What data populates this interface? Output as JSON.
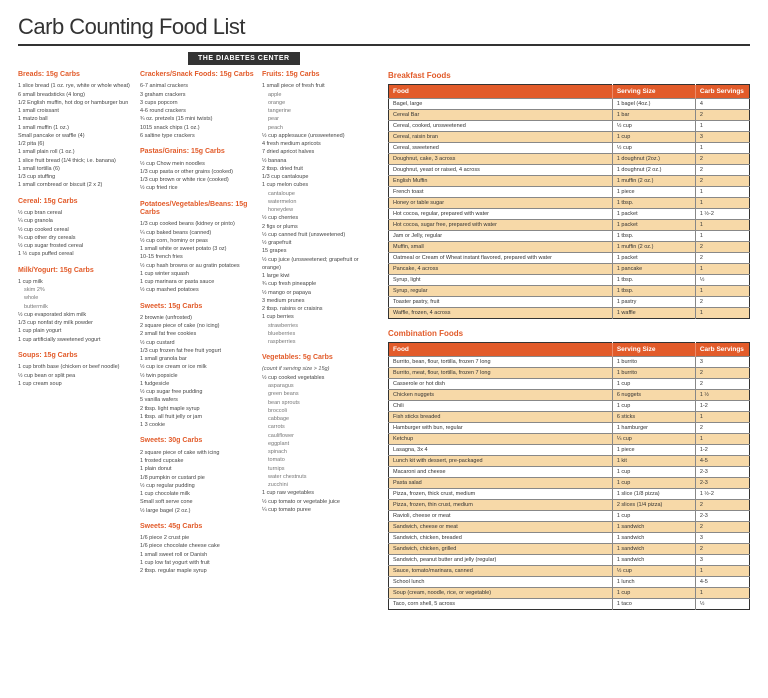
{
  "title": "Carb Counting Food List",
  "banner": "THE DIABETES CENTER",
  "colors": {
    "accent": "#e25b2a",
    "highlight": "#f7d9a8"
  },
  "columns": [
    [
      {
        "head": "Breads: 15g Carbs",
        "items": [
          "1 slice bread (1 oz. rye, white or whole wheat)",
          "6 small breadsticks (4 long)",
          "1/2 English muffin, hot dog or hamburger bun",
          "1 small croissant",
          "1 matzo ball",
          "1 small muffin (1 oz.)",
          "Small pancake or waffle (4)",
          "1/2 pita (6)",
          "1 small plain roll (1 oz.)",
          "1 slice fruit bread (1/4 thick; i.e. banana)",
          "1 small tortilla (6)",
          "1/3 cup stuffing",
          "1 small cornbread or biscuit (2 x 2)"
        ]
      },
      {
        "head": "Cereal: 15g Carbs",
        "items": [
          "½ cup bran cereal",
          "¼ cup granola",
          "½ cup cooked cereal",
          "¾ cup other dry cereals",
          "½ cup sugar frosted cereal",
          "1 ½ cups puffed cereal"
        ]
      },
      {
        "head": "Milk/Yogurt: 15g Carbs",
        "items": [
          "1 cup milk"
        ],
        "subs": [
          "skim 2%",
          "whole",
          "buttermilk"
        ],
        "more": [
          "½ cup evaporated skim milk",
          "1/3 cup nonfat dry milk powder",
          "1 cup plain yogurt",
          "1 cup artificially sweetened yogurt"
        ]
      },
      {
        "head": "Soups: 15g Carbs",
        "items": [
          "1 cup broth base (chicken or beef noodle)",
          "½ cup bean or split pea",
          "1 cup cream soup"
        ]
      }
    ],
    [
      {
        "head": "Crackers/Snack Foods: 15g Carbs",
        "items": [
          "6-7 animal crackers",
          "3 graham crackers",
          "3 cups popcorn",
          "4-6 round crackers",
          "¾ oz. pretzels (15 mini twists)",
          "1015 snack chips (1 oz.)",
          "6 saltine type crackers"
        ]
      },
      {
        "head": "Pastas/Grains: 15g Carbs",
        "items": [
          "½ cup Chow mein noodles",
          "1/3 cup pasta or other grains (cooked)",
          "1/3 cup brown or white rice (cooked)",
          "½ cup fried rice"
        ]
      },
      {
        "head": "Potatoes/Vegetables/Beans: 15g Carbs",
        "items": [
          "1/3 cup cooked beans (kidney or pinto)",
          "¼ cup baked beans (canned)",
          "½ cup corn, hominy or peas",
          "1 small white or sweet potato (3 oz)",
          "10-15 french fries",
          "½ cup hash browns or au gratin potatoes",
          "1 cup winter squash",
          "1 cup marinara or pasta sauce",
          "½ cup mashed potatoes"
        ]
      },
      {
        "head": "Sweets: 15g Carbs",
        "items": [
          "2 brownie (unfrosted)",
          "2 square piece of cake (no icing)",
          "2 small fat free cookies",
          "½ cup custard",
          "1/3 cup frozen fat free fruit yogurt",
          "1 small granola bar",
          "½ cup ice cream or ice milk",
          "½ twin popsicle",
          "1 fudgesicle",
          "½ cup sugar free pudding",
          "5 vanilla wafers",
          "2 tbsp. light maple syrup",
          "1 tbsp. all fruit jelly or jam",
          "1 3 cookie"
        ]
      },
      {
        "head": "Sweets: 30g Carbs",
        "items": [
          "2 square piece of cake with icing",
          "1 frosted cupcake",
          "1 plain donut",
          "1/8 pumpkin or custard pie",
          "½ cup regular pudding",
          "1 cup chocolate milk",
          "Small soft serve cone",
          "½ large bagel (2 oz.)"
        ]
      },
      {
        "head": "Sweets: 45g Carbs",
        "items": [
          "1/6 piece 2 crust pie",
          "1/6 piece chocolate cheese cake",
          "1 small sweet roll or Danish",
          "1 cup low fat yogurt with fruit",
          "2 tbsp. regular maple syrup"
        ]
      }
    ],
    [
      {
        "head": "Fruits: 15g Carbs",
        "items": [
          "1 small piece of fresh fruit"
        ],
        "subs": [
          "apple",
          "orange",
          "tangerine",
          "pear",
          "peach"
        ],
        "more": [
          "½ cup applesauce (unsweetened)",
          "4 fresh medium apricots",
          "7 dried apricot halves",
          "½ banana",
          "2 tbsp. dried fruit",
          "1/3 cup cantaloupe",
          "1 cup melon cubes"
        ],
        "subs2": [
          "cantaloupe",
          "watermelon",
          "honeydew"
        ],
        "more2": [
          "½ cup cherries",
          "2 figs or plums",
          "½ cup canned fruit (unsweetened)",
          "½ grapefruit",
          "15 grapes",
          "½ cup juice (unsweetened; grapefruit or orange)",
          "1 large kiwi",
          "¾ cup fresh pineapple",
          "½ mango or papaya",
          "3 medium prunes",
          "2 tbsp. raisins or craisins",
          "1 cup berries"
        ],
        "subs3": [
          "strawberries",
          "blueberries",
          "raspberries"
        ]
      },
      {
        "head": "Vegetables: 5g Carbs",
        "note": "(count if serving size > 15g)",
        "items": [
          "½ cup cooked vegetables"
        ],
        "subs": [
          "asparagus",
          "green beans",
          "bean sprouts",
          "broccoli",
          "cabbage",
          "carrots",
          "cauliflower",
          "eggplant",
          "spinach",
          "tomato",
          "turnips",
          "water chestnuts",
          "zucchini"
        ],
        "more": [
          "1 cup raw vegetables",
          "½ cup tomato or vegetable juice",
          "¼ cup tomato puree"
        ]
      }
    ]
  ],
  "tables": [
    {
      "title": "Breakfast Foods",
      "headers": [
        "Food",
        "Serving Size",
        "Carb Servings"
      ],
      "rows": [
        {
          "c": [
            "Bagel, large",
            "1 bagel (4oz.)",
            "4"
          ]
        },
        {
          "c": [
            "Cereal Bar",
            "1 bar",
            "2"
          ],
          "hi": true
        },
        {
          "c": [
            "Cereal, cooked, unsweetened",
            "½ cup",
            "1"
          ]
        },
        {
          "c": [
            "Cereal, raisin bran",
            "1 cup",
            "3"
          ],
          "hi": true
        },
        {
          "c": [
            "Cereal, sweetened",
            "½ cup",
            "1"
          ]
        },
        {
          "c": [
            "Doughnut, cake, 3 across",
            "1 doughnut (2oz.)",
            "2"
          ],
          "hi": true
        },
        {
          "c": [
            "Doughnut, yeast or raised, 4 across",
            "1 doughnut (2 oz.)",
            "2"
          ]
        },
        {
          "c": [
            "English Muffin",
            "1 muffin (2 oz.)",
            "2"
          ],
          "hi": true
        },
        {
          "c": [
            "French toast",
            "1 piece",
            "1"
          ]
        },
        {
          "c": [
            "Honey or table sugar",
            "1 tbsp.",
            "1"
          ],
          "hi": true
        },
        {
          "c": [
            "Hot cocoa, regular, prepared with water",
            "1 packet",
            "1 ½-2"
          ]
        },
        {
          "c": [
            "Hot cocoa, sugar free, prepared with water",
            "1 packet",
            "1"
          ],
          "hi": true
        },
        {
          "c": [
            "Jam or Jelly, regular",
            "1 tbsp.",
            "1"
          ]
        },
        {
          "c": [
            "Muffin, small",
            "1 muffin (2 oz.)",
            "2"
          ],
          "hi": true
        },
        {
          "c": [
            "Oatmeal or Cream of Wheat instant flavored, prepared with water",
            "1 packet",
            "2"
          ]
        },
        {
          "c": [
            "Pancake, 4 across",
            "1 pancake",
            "1"
          ],
          "hi": true
        },
        {
          "c": [
            "Syrup, light",
            "1 tbsp.",
            "½"
          ]
        },
        {
          "c": [
            "Syrup, regular",
            "1 tbsp.",
            "1"
          ],
          "hi": true
        },
        {
          "c": [
            "Toaster pastry, fruit",
            "1 pastry",
            "2"
          ]
        },
        {
          "c": [
            "Waffle, frozen, 4 across",
            "1 waffle",
            "1"
          ],
          "hi": true
        }
      ]
    },
    {
      "title": "Combination Foods",
      "headers": [
        "Food",
        "Serving Size",
        "Carb Servings"
      ],
      "rows": [
        {
          "c": [
            "Burrito, bean, flour, tortilla, frozen 7 long",
            "1 burrito",
            "3"
          ]
        },
        {
          "c": [
            "Burrito, meat, flour, tortilla, frozen 7 long",
            "1 burrito",
            "2"
          ],
          "hi": true
        },
        {
          "c": [
            "Casserole or hot dish",
            "1 cup",
            "2"
          ]
        },
        {
          "c": [
            "Chicken nuggets",
            "6 nuggets",
            "1 ½"
          ],
          "hi": true
        },
        {
          "c": [
            "Chili",
            "1 cup",
            "1-2"
          ]
        },
        {
          "c": [
            "Fish sticks breaded",
            "6 sticks",
            "1"
          ],
          "hi": true
        },
        {
          "c": [
            "Hamburger with bun, regular",
            "1 hamburger",
            "2"
          ]
        },
        {
          "c": [
            "Ketchup",
            "¼ cup",
            "1"
          ],
          "hi": true
        },
        {
          "c": [
            "Lasagna, 3x 4",
            "1 piece",
            "1-2"
          ]
        },
        {
          "c": [
            "Lunch kit with dessert, pre-packaged",
            "1 kit",
            "4-5"
          ],
          "hi": true
        },
        {
          "c": [
            "Macaroni and cheese",
            "1 cup",
            "2-3"
          ]
        },
        {
          "c": [
            "Pasta salad",
            "1 cup",
            "2-3"
          ],
          "hi": true
        },
        {
          "c": [
            "Pizza, frozen, thick crust, medium",
            "1 slice (1/8 pizza)",
            "1 ½-2"
          ]
        },
        {
          "c": [
            "Pizza, frozen, thin crust, medium",
            "2 slices (1/4 pizza)",
            "2"
          ],
          "hi": true
        },
        {
          "c": [
            "Ravioli, cheese or meat",
            "1 cup",
            "2-3"
          ]
        },
        {
          "c": [
            "Sandwich, cheese or meat",
            "1 sandwich",
            "2"
          ],
          "hi": true
        },
        {
          "c": [
            "Sandwich, chicken, breaded",
            "1 sandwich",
            "3"
          ]
        },
        {
          "c": [
            "Sandwich, chicken, grilled",
            "1 sandwich",
            "2"
          ],
          "hi": true
        },
        {
          "c": [
            "Sandwich, peanut butter and jelly (regular)",
            "1 sandwich",
            "3"
          ]
        },
        {
          "c": [
            "Sauce, tomato/marinara, canned",
            "½ cup",
            "1"
          ],
          "hi": true
        },
        {
          "c": [
            "School lunch",
            "1 lunch",
            "4-5"
          ]
        },
        {
          "c": [
            "Soup (cream, noodle, rice, or vegetable)",
            "1 cup",
            "1"
          ],
          "hi": true
        },
        {
          "c": [
            "Taco, corn shell, 5 across",
            "1 taco",
            "½"
          ]
        }
      ]
    }
  ]
}
